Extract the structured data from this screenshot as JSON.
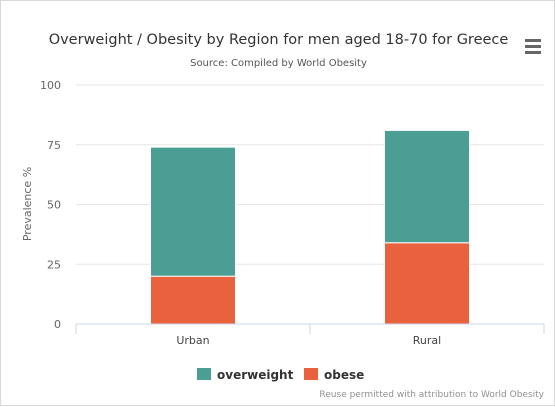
{
  "header": {
    "title": "Overweight / Obesity by Region for men aged 18-70 for Greece",
    "subtitle": "Source: Compiled by World Obesity",
    "menu_icon": "hamburger-menu-icon"
  },
  "credits": "Reuse permitted with attribution to World Obesity",
  "colors": {
    "overweight": "#4a9e94",
    "obese": "#e9623d",
    "grid": "#e6e6e6",
    "axis": "#ccd6eb"
  },
  "chart_data": {
    "type": "bar",
    "stacked": true,
    "categories": [
      "Urban",
      "Rural"
    ],
    "series": [
      {
        "name": "overweight",
        "values": [
          54,
          47
        ]
      },
      {
        "name": "obese",
        "values": [
          20,
          34
        ]
      }
    ],
    "title": "Overweight / Obesity by Region for men aged 18-70 for Greece",
    "subtitle": "Source: Compiled by World Obesity",
    "xlabel": "",
    "ylabel": "Prevalence %",
    "ylim": [
      0,
      100
    ],
    "yticks": [
      "0",
      "25",
      "50",
      "75",
      "100"
    ],
    "grid": true,
    "legend": "bottom-center"
  }
}
